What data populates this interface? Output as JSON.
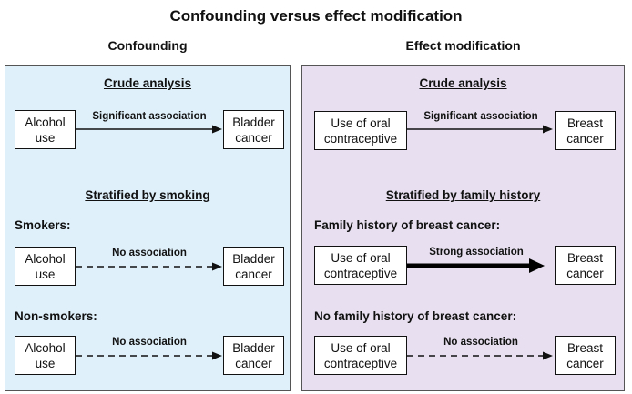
{
  "title": "Confounding versus effect modification",
  "left": {
    "heading": "Confounding",
    "crude_title": "Crude analysis",
    "crude": {
      "exposure": "Alcohol\nuse",
      "assoc": "Significant association",
      "outcome": "Bladder\ncancer"
    },
    "stratified_title": "Stratified by smoking",
    "stratum1": {
      "label": "Smokers:",
      "exposure": "Alcohol\nuse",
      "assoc": "No association",
      "outcome": "Bladder\ncancer"
    },
    "stratum2": {
      "label": "Non-smokers:",
      "exposure": "Alcohol\nuse",
      "assoc": "No association",
      "outcome": "Bladder\ncancer"
    }
  },
  "right": {
    "heading": "Effect modification",
    "crude_title": "Crude analysis",
    "crude": {
      "exposure": "Use of oral\ncontraceptive",
      "assoc": "Significant association",
      "outcome": "Breast\ncancer"
    },
    "stratified_title": "Stratified by family history",
    "stratum1": {
      "label": "Family history of breast cancer:",
      "exposure": "Use of oral\ncontraceptive",
      "assoc": "Strong association",
      "outcome": "Breast\ncancer"
    },
    "stratum2": {
      "label": "No family history of breast cancer:",
      "exposure": "Use of oral\ncontraceptive",
      "assoc": "No association",
      "outcome": "Breast\ncancer"
    }
  }
}
